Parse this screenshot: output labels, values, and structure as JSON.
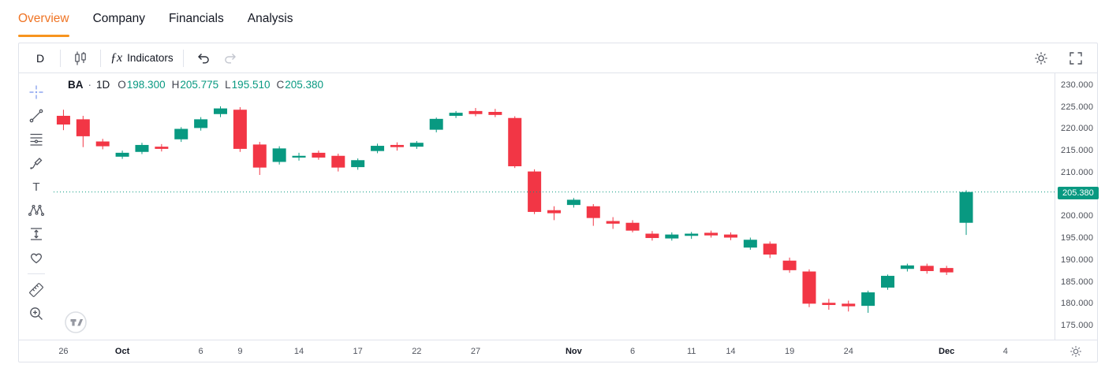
{
  "tabs": [
    {
      "label": "Overview",
      "active": true
    },
    {
      "label": "Company",
      "active": false
    },
    {
      "label": "Financials",
      "active": false
    },
    {
      "label": "Analysis",
      "active": false
    }
  ],
  "toolbar": {
    "interval": "D",
    "fx": "ƒx",
    "indicators_label": "Indicators"
  },
  "drawing_tools": [
    {
      "name": "crosshair",
      "active": true
    },
    {
      "name": "trend-line"
    },
    {
      "name": "fib-retracement"
    },
    {
      "name": "brush"
    },
    {
      "name": "text"
    },
    {
      "name": "xabcd-pattern"
    },
    {
      "name": "prediction"
    },
    {
      "name": "emoji"
    },
    {
      "divider": true
    },
    {
      "name": "ruler"
    },
    {
      "name": "zoom-in"
    }
  ],
  "legend": {
    "symbol": "BA",
    "separator": "·",
    "interval": "1D",
    "ohlc": [
      {
        "k": "O",
        "v": "198.300"
      },
      {
        "k": "H",
        "v": "205.775"
      },
      {
        "k": "L",
        "v": "195.510"
      },
      {
        "k": "C",
        "v": "205.380"
      }
    ]
  },
  "price_axis": {
    "ticks": [
      "230.000",
      "225.000",
      "220.000",
      "215.000",
      "210.000",
      "205.000",
      "200.000",
      "195.000",
      "190.000",
      "185.000",
      "180.000",
      "175.000"
    ],
    "last_price_label": "205.380"
  },
  "time_axis": {
    "labels": [
      {
        "t": "26",
        "slot": 0
      },
      {
        "t": "Oct",
        "slot": 3,
        "month": true
      },
      {
        "t": "6",
        "slot": 7
      },
      {
        "t": "9",
        "slot": 9
      },
      {
        "t": "14",
        "slot": 12
      },
      {
        "t": "17",
        "slot": 15
      },
      {
        "t": "22",
        "slot": 18
      },
      {
        "t": "27",
        "slot": 21
      },
      {
        "t": "Nov",
        "slot": 26,
        "month": true
      },
      {
        "t": "6",
        "slot": 29
      },
      {
        "t": "11",
        "slot": 32
      },
      {
        "t": "14",
        "slot": 34
      },
      {
        "t": "19",
        "slot": 37
      },
      {
        "t": "24",
        "slot": 40
      },
      {
        "t": "Dec",
        "slot": 45,
        "month": true
      },
      {
        "t": "4",
        "slot": 48
      }
    ]
  },
  "chart_data": {
    "type": "candlestick",
    "symbol": "BA",
    "interval": "1D",
    "up_color": "#089981",
    "down_color": "#f23645",
    "ylim": [
      171.25,
      232.68
    ],
    "yticks": [
      230,
      225,
      220,
      215,
      210,
      205,
      200,
      195,
      190,
      185,
      180,
      175
    ],
    "total_slots": 51,
    "price_line_value": 205.38,
    "last_ohlc": {
      "o": 198.3,
      "h": 205.775,
      "l": 195.51,
      "c": 205.38
    },
    "candles": [
      [
        222.9,
        224.3,
        219.6,
        220.9
      ],
      [
        222.1,
        222.9,
        215.7,
        218.2
      ],
      [
        217.0,
        217.6,
        215.2,
        215.9
      ],
      [
        213.5,
        214.9,
        213.0,
        214.4
      ],
      [
        214.6,
        216.7,
        214.1,
        216.2
      ],
      [
        215.8,
        216.4,
        214.7,
        215.3
      ],
      [
        217.5,
        220.3,
        216.9,
        219.9
      ],
      [
        220.1,
        222.6,
        219.5,
        222.1
      ],
      [
        223.3,
        225.1,
        222.6,
        224.6
      ],
      [
        224.3,
        224.9,
        214.6,
        215.3
      ],
      [
        216.3,
        216.9,
        209.3,
        211.0
      ],
      [
        212.3,
        215.9,
        211.7,
        215.4
      ],
      [
        213.3,
        214.4,
        212.6,
        213.7
      ],
      [
        214.4,
        214.9,
        212.8,
        213.3
      ],
      [
        213.7,
        214.2,
        210.1,
        211.0
      ],
      [
        211.1,
        213.1,
        210.5,
        212.7
      ],
      [
        214.8,
        216.5,
        214.3,
        216.0
      ],
      [
        216.2,
        216.8,
        214.9,
        215.7
      ],
      [
        215.8,
        217.1,
        215.3,
        216.7
      ],
      [
        219.7,
        222.5,
        219.1,
        222.2
      ],
      [
        222.9,
        224.0,
        222.4,
        223.6
      ],
      [
        224.0,
        224.7,
        222.8,
        223.3
      ],
      [
        223.8,
        224.5,
        222.6,
        223.1
      ],
      [
        222.4,
        222.8,
        210.9,
        211.3
      ],
      [
        210.1,
        210.6,
        200.3,
        200.8
      ],
      [
        201.2,
        202.1,
        198.9,
        200.5
      ],
      [
        202.4,
        204.0,
        201.8,
        203.6
      ],
      [
        202.1,
        202.6,
        197.6,
        199.4
      ],
      [
        198.7,
        199.6,
        196.9,
        198.1
      ],
      [
        198.3,
        198.9,
        196.1,
        196.5
      ],
      [
        195.8,
        196.4,
        194.2,
        194.8
      ],
      [
        194.7,
        196.1,
        194.2,
        195.6
      ],
      [
        195.3,
        196.2,
        194.6,
        195.8
      ],
      [
        196.0,
        196.5,
        194.9,
        195.4
      ],
      [
        195.6,
        196.1,
        194.3,
        194.9
      ],
      [
        192.6,
        194.9,
        192.1,
        194.4
      ],
      [
        193.5,
        194.0,
        190.2,
        191.0
      ],
      [
        189.6,
        190.3,
        186.8,
        187.4
      ],
      [
        187.1,
        187.6,
        178.9,
        179.7
      ],
      [
        179.9,
        180.8,
        178.3,
        179.4
      ],
      [
        179.7,
        180.4,
        177.9,
        179.1
      ],
      [
        179.2,
        182.7,
        177.6,
        182.3
      ],
      [
        183.4,
        186.4,
        182.9,
        186.1
      ],
      [
        187.7,
        188.9,
        187.1,
        188.5
      ],
      [
        188.4,
        188.9,
        186.6,
        187.2
      ],
      [
        187.9,
        188.4,
        186.3,
        186.9
      ],
      [
        198.3,
        205.775,
        195.51,
        205.38
      ]
    ]
  },
  "theme": {
    "active_tab_orange": "#ef7424",
    "underline_orange": "#f7941e",
    "up_teal": "#089981",
    "down_red": "#f23645",
    "border_gray": "#e0e3eb"
  }
}
